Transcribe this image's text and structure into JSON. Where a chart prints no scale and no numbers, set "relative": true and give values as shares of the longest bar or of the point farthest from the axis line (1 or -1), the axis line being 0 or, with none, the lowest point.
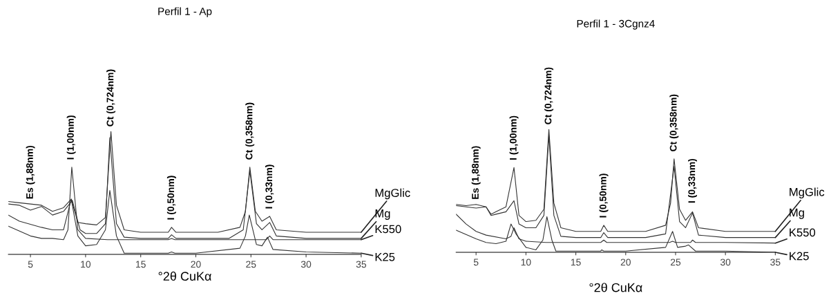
{
  "chart_data": [
    {
      "type": "line",
      "title": "Perfil 1 - Ap",
      "xlabel": "°2θ CuKα",
      "relative": true,
      "xlim": [
        3,
        35
      ],
      "xticks": [
        5,
        10,
        15,
        20,
        25,
        30,
        35
      ],
      "marker": "none",
      "line_style": "solid",
      "legend": false,
      "grid": false,
      "tick_labels": "x",
      "series": [
        {
          "name": "MgGlic",
          "color": "#333333",
          "x": [
            3,
            4,
            5,
            6,
            7,
            8,
            8.7,
            9.3,
            10,
            11,
            11.8,
            12.3,
            12.8,
            13.5,
            15,
            17.5,
            17.8,
            18.2,
            22,
            24,
            24.5,
            24.9,
            25.4,
            26,
            26.7,
            27.3,
            30,
            35
          ],
          "values": [
            0.43,
            0.42,
            0.41,
            0.4,
            0.35,
            0.38,
            0.45,
            0.26,
            0.25,
            0.24,
            0.3,
            1.0,
            0.4,
            0.2,
            0.18,
            0.18,
            0.22,
            0.18,
            0.18,
            0.22,
            0.35,
            0.71,
            0.35,
            0.27,
            0.31,
            0.2,
            0.18,
            0.18
          ]
        },
        {
          "name": "Mg",
          "color": "#333333",
          "x": [
            3,
            4,
            5,
            6,
            7,
            8,
            8.8,
            9.5,
            10,
            11,
            11.8,
            12.2,
            12.8,
            13.5,
            15,
            17.5,
            17.8,
            18.2,
            23,
            24.3,
            24.9,
            25.5,
            26,
            26.7,
            27.3,
            30,
            35
          ],
          "values": [
            0.41,
            0.4,
            0.36,
            0.39,
            0.32,
            0.35,
            0.44,
            0.2,
            0.17,
            0.17,
            0.25,
            0.95,
            0.25,
            0.14,
            0.13,
            0.13,
            0.16,
            0.13,
            0.13,
            0.2,
            0.68,
            0.25,
            0.2,
            0.26,
            0.15,
            0.13,
            0.13
          ]
        },
        {
          "name": "K550",
          "color": "#333333",
          "x": [
            3,
            4,
            5,
            6,
            7,
            8,
            8.4,
            8.75,
            9.3,
            10,
            12,
            15,
            17.5,
            17.8,
            18.1,
            22,
            26.4,
            26.7,
            27,
            30,
            35
          ],
          "values": [
            0.23,
            0.19,
            0.15,
            0.13,
            0.13,
            0.12,
            0.2,
            0.71,
            0.2,
            0.13,
            0.12,
            0.12,
            0.12,
            0.13,
            0.12,
            0.12,
            0.12,
            0.15,
            0.12,
            0.12,
            0.12
          ]
        },
        {
          "name": "K25",
          "color": "#333333",
          "x": [
            3,
            4,
            6,
            7,
            8,
            8.7,
            9.3,
            10,
            11,
            11.8,
            12.2,
            12.8,
            13.5,
            15,
            17.5,
            17.8,
            18.1,
            20,
            24,
            24.5,
            24.85,
            25.5,
            26,
            26.5,
            27,
            30,
            35
          ],
          "values": [
            0.32,
            0.27,
            0.22,
            0.2,
            0.2,
            0.45,
            0.15,
            0.07,
            0.08,
            0.2,
            0.52,
            0.15,
            0.01,
            0.01,
            0.01,
            0.02,
            0.01,
            0.01,
            0.05,
            0.15,
            0.32,
            0.08,
            0.07,
            0.14,
            0.04,
            0.02,
            0.01
          ]
        }
      ],
      "annotations": [
        {
          "text": "Es (1,88nm)",
          "x": 5,
          "y": 0.41
        },
        {
          "text": "I (1,00nm)",
          "x": 8.7,
          "y": 0.73
        },
        {
          "text": "Ct (0,724nm)",
          "x": 12.3,
          "y": 1.0
        },
        {
          "text": "I (0,50nm)",
          "x": 17.8,
          "y": 0.24
        },
        {
          "text": "Ct (0,358nm)",
          "x": 24.9,
          "y": 0.73
        },
        {
          "text": "I (0,33nm)",
          "x": 26.7,
          "y": 0.33
        }
      ]
    },
    {
      "type": "line",
      "title": "Perfil 1 - 3Cgnz4",
      "xlabel": "°2θ CuKα",
      "relative": true,
      "xlim": [
        3,
        35
      ],
      "xticks": [
        5,
        10,
        15,
        20,
        25,
        30,
        35
      ],
      "marker": "none",
      "line_style": "solid",
      "legend": false,
      "grid": false,
      "tick_labels": "x",
      "series": [
        {
          "name": "MgGlic",
          "color": "#333333",
          "x": [
            3,
            4,
            5,
            6,
            6.5,
            7,
            8,
            8.8,
            9.3,
            10,
            11,
            11.8,
            12.3,
            12.8,
            13.5,
            15,
            17.5,
            17.8,
            18.2,
            22,
            24,
            24.5,
            24.85,
            25.4,
            26,
            26.7,
            27.3,
            30,
            35
          ],
          "values": [
            0.39,
            0.38,
            0.39,
            0.37,
            0.31,
            0.33,
            0.37,
            0.69,
            0.3,
            0.25,
            0.26,
            0.35,
            1.0,
            0.4,
            0.2,
            0.17,
            0.17,
            0.22,
            0.17,
            0.17,
            0.22,
            0.4,
            0.76,
            0.35,
            0.26,
            0.33,
            0.2,
            0.17,
            0.17
          ]
        },
        {
          "name": "Mg",
          "color": "#333333",
          "x": [
            3,
            4,
            5,
            6,
            6.5,
            7,
            8,
            8.8,
            9.3,
            10,
            11,
            11.8,
            12.3,
            12.8,
            13.5,
            15,
            17.5,
            17.8,
            18.2,
            22,
            24,
            24.85,
            25.4,
            26,
            26.7,
            27.3,
            30,
            35
          ],
          "values": [
            0.38,
            0.37,
            0.36,
            0.37,
            0.3,
            0.31,
            0.33,
            0.42,
            0.23,
            0.2,
            0.2,
            0.3,
            0.95,
            0.3,
            0.13,
            0.12,
            0.12,
            0.16,
            0.12,
            0.12,
            0.15,
            0.7,
            0.25,
            0.2,
            0.32,
            0.14,
            0.12,
            0.12
          ]
        },
        {
          "name": "K550",
          "color": "#333333",
          "x": [
            3,
            4,
            5,
            6,
            8,
            8.5,
            8.8,
            9.3,
            10,
            12,
            15,
            17.5,
            17.8,
            18.1,
            22,
            24.4,
            24.7,
            25,
            26.5,
            26.7,
            27,
            30,
            35
          ],
          "values": [
            0.31,
            0.23,
            0.17,
            0.14,
            0.11,
            0.13,
            0.2,
            0.11,
            0.09,
            0.08,
            0.08,
            0.08,
            0.1,
            0.08,
            0.08,
            0.08,
            0.09,
            0.08,
            0.08,
            0.1,
            0.08,
            0.08,
            0.075
          ]
        },
        {
          "name": "K25",
          "color": "#333333",
          "x": [
            3,
            5,
            6,
            7,
            8,
            8.5,
            9,
            10,
            11,
            11.7,
            12.1,
            12.6,
            13,
            15,
            17.5,
            17.6,
            17.8,
            20,
            24,
            24.7,
            25.2,
            26,
            26.3,
            27,
            30,
            35
          ],
          "values": [
            0.18,
            0.11,
            0.08,
            0.07,
            0.09,
            0.23,
            0.15,
            0.04,
            0.02,
            0.1,
            0.29,
            0.1,
            0.01,
            0.01,
            0.01,
            0.02,
            0.01,
            0.01,
            0.04,
            0.17,
            0.04,
            0.05,
            0.06,
            0.01,
            0.01,
            0.0
          ]
        }
      ],
      "annotations": [
        {
          "text": "Es (1,88nm)",
          "x": 5,
          "y": 0.39
        },
        {
          "text": "I (1,00nm)",
          "x": 8.8,
          "y": 0.71
        },
        {
          "text": "Ct (0,724nm)",
          "x": 12.3,
          "y": 1.0
        },
        {
          "text": "I (0,50nm)",
          "x": 17.8,
          "y": 0.24
        },
        {
          "text": "Ct (0,358nm)",
          "x": 24.85,
          "y": 0.78
        },
        {
          "text": "I (0,33nm)",
          "x": 26.7,
          "y": 0.36
        }
      ]
    }
  ]
}
